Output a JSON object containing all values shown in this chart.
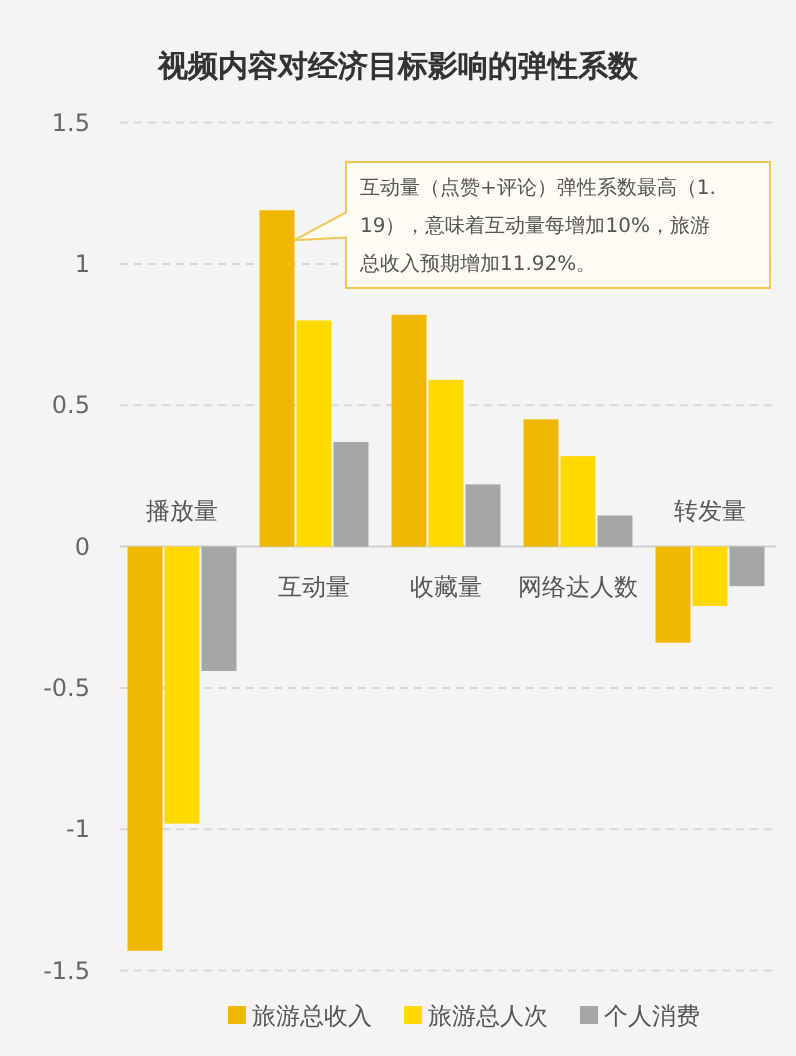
{
  "chart_data": {
    "type": "bar",
    "title": "视频内容对经济目标影响的弹性系数",
    "categories": [
      "播放量",
      "互动量",
      "收藏量",
      "网络达人数",
      "转发量"
    ],
    "series": [
      {
        "name": "旅游总收入",
        "color": "#f0b800",
        "values": [
          -1.43,
          1.19,
          0.82,
          0.45,
          -0.34
        ]
      },
      {
        "name": "旅游总人次",
        "color": "#ffd900",
        "values": [
          -0.98,
          0.8,
          0.59,
          0.32,
          -0.21
        ]
      },
      {
        "name": "个人消费",
        "color": "#a6a6a6",
        "values": [
          -0.44,
          0.37,
          0.22,
          0.11,
          -0.14
        ]
      }
    ],
    "ylim": [
      -1.5,
      1.5
    ],
    "yticks": [
      -1.5,
      -1,
      -0.5,
      0,
      0.5,
      1,
      1.5
    ],
    "grid": "y",
    "legend": "bottom",
    "annotations": [
      "互动量（点赞+评论）弹性系数最高（1.19），意味着互动量每增加10%，旅游总收入预期增加11.92%。"
    ]
  }
}
